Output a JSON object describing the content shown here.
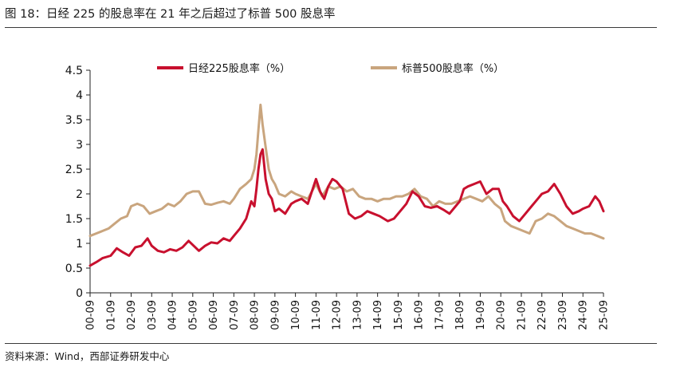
{
  "figure": {
    "title": "图 18：日经 225 的股息率在 21 年之后超过了标普 500 股息率",
    "source": "资料来源：Wind，西部证券研发中心"
  },
  "chart_data": {
    "type": "line",
    "title": "",
    "xlabel": "",
    "ylabel": "",
    "ylim": [
      0,
      4.5
    ],
    "yticks": [
      "0",
      "0.5",
      "1",
      "1.5",
      "2",
      "2.5",
      "3",
      "3.5",
      "4",
      "4.5"
    ],
    "categories": [
      "00-09",
      "01-09",
      "02-09",
      "03-09",
      "04-09",
      "05-09",
      "06-09",
      "07-09",
      "08-09",
      "09-09",
      "10-09",
      "11-09",
      "12-09",
      "13-09",
      "14-09",
      "15-09",
      "16-09",
      "17-09",
      "18-09",
      "19-09",
      "20-09",
      "21-09",
      "22-09",
      "23-09",
      "24-09",
      "25-09"
    ],
    "grid": false,
    "legend_position": "top",
    "colors": {
      "nikkei": "#c8102e",
      "sp500": "#c9a57e"
    },
    "series": [
      {
        "name": "日经225股息率（%）",
        "key": "nikkei",
        "x": [
          0,
          0.3,
          0.6,
          1,
          1.3,
          1.6,
          1.9,
          2.2,
          2.5,
          2.8,
          3,
          3.3,
          3.6,
          3.9,
          4.2,
          4.5,
          4.8,
          5,
          5.3,
          5.6,
          5.9,
          6.2,
          6.5,
          6.8,
          7,
          7.3,
          7.6,
          7.85,
          8,
          8.1,
          8.2,
          8.3,
          8.4,
          8.55,
          8.7,
          8.85,
          9,
          9.2,
          9.5,
          9.8,
          10,
          10.3,
          10.6,
          11,
          11.2,
          11.4,
          11.6,
          11.8,
          12,
          12.3,
          12.6,
          12.9,
          13.2,
          13.5,
          13.8,
          14.1,
          14.5,
          14.8,
          15.1,
          15.4,
          15.7,
          16,
          16.3,
          16.6,
          16.9,
          17.2,
          17.5,
          17.8,
          18,
          18.2,
          18.4,
          18.7,
          19,
          19.3,
          19.6,
          19.9,
          20.1,
          20.3,
          20.6,
          20.9,
          21.2,
          21.5,
          21.8,
          22,
          22.3,
          22.6,
          22.9,
          23.2,
          23.5,
          23.8,
          24,
          24.3,
          24.6,
          24.8,
          25
        ],
        "values": [
          0.55,
          0.62,
          0.7,
          0.75,
          0.9,
          0.82,
          0.75,
          0.92,
          0.95,
          1.1,
          0.95,
          0.85,
          0.82,
          0.88,
          0.85,
          0.92,
          1.05,
          0.97,
          0.85,
          0.95,
          1.02,
          1.0,
          1.1,
          1.05,
          1.15,
          1.3,
          1.5,
          1.85,
          1.75,
          2.1,
          2.5,
          2.8,
          2.9,
          2.3,
          2.0,
          1.9,
          1.65,
          1.7,
          1.6,
          1.8,
          1.85,
          1.9,
          1.8,
          2.3,
          2.05,
          1.9,
          2.15,
          2.3,
          2.25,
          2.1,
          1.6,
          1.5,
          1.55,
          1.65,
          1.6,
          1.55,
          1.45,
          1.5,
          1.65,
          1.8,
          2.05,
          1.95,
          1.75,
          1.72,
          1.75,
          1.68,
          1.6,
          1.75,
          1.85,
          2.1,
          2.15,
          2.2,
          2.25,
          2.0,
          2.1,
          2.1,
          1.85,
          1.75,
          1.55,
          1.45,
          1.6,
          1.75,
          1.9,
          2.0,
          2.05,
          2.2,
          2.0,
          1.75,
          1.6,
          1.65,
          1.7,
          1.75,
          1.95,
          1.85,
          1.65
        ]
      },
      {
        "name": "标普500股息率（%）",
        "key": "sp500",
        "x": [
          0,
          0.3,
          0.6,
          0.9,
          1.2,
          1.5,
          1.8,
          2,
          2.3,
          2.6,
          2.9,
          3.2,
          3.5,
          3.8,
          4.1,
          4.4,
          4.7,
          5,
          5.3,
          5.6,
          5.9,
          6.2,
          6.5,
          6.8,
          7,
          7.3,
          7.6,
          7.85,
          8,
          8.1,
          8.2,
          8.3,
          8.4,
          8.55,
          8.7,
          8.85,
          9,
          9.2,
          9.5,
          9.8,
          10,
          10.3,
          10.6,
          11,
          11.3,
          11.6,
          11.9,
          12.2,
          12.5,
          12.8,
          13.1,
          13.4,
          13.7,
          14,
          14.3,
          14.6,
          14.9,
          15.2,
          15.5,
          15.8,
          16.1,
          16.4,
          16.7,
          17,
          17.3,
          17.6,
          17.9,
          18.2,
          18.5,
          18.8,
          19.1,
          19.4,
          19.7,
          20,
          20.2,
          20.5,
          20.8,
          21.1,
          21.4,
          21.7,
          22,
          22.3,
          22.6,
          22.9,
          23.2,
          23.5,
          23.8,
          24.1,
          24.4,
          24.7,
          25
        ],
        "values": [
          1.15,
          1.2,
          1.25,
          1.3,
          1.4,
          1.5,
          1.55,
          1.75,
          1.8,
          1.75,
          1.6,
          1.65,
          1.7,
          1.8,
          1.75,
          1.85,
          2.0,
          2.05,
          2.05,
          1.8,
          1.78,
          1.82,
          1.85,
          1.8,
          1.9,
          2.1,
          2.2,
          2.3,
          2.5,
          2.8,
          3.3,
          3.8,
          3.4,
          2.95,
          2.5,
          2.3,
          2.2,
          2.0,
          1.95,
          2.05,
          2.0,
          1.95,
          1.9,
          2.2,
          1.95,
          2.15,
          2.1,
          2.15,
          2.05,
          2.1,
          1.95,
          1.9,
          1.9,
          1.85,
          1.9,
          1.9,
          1.95,
          1.95,
          2.0,
          2.1,
          1.95,
          1.9,
          1.75,
          1.85,
          1.8,
          1.8,
          1.85,
          1.9,
          1.95,
          1.9,
          1.85,
          1.95,
          1.8,
          1.7,
          1.45,
          1.35,
          1.3,
          1.25,
          1.2,
          1.45,
          1.5,
          1.6,
          1.55,
          1.45,
          1.35,
          1.3,
          1.25,
          1.2,
          1.2,
          1.15,
          1.1
        ]
      }
    ]
  }
}
